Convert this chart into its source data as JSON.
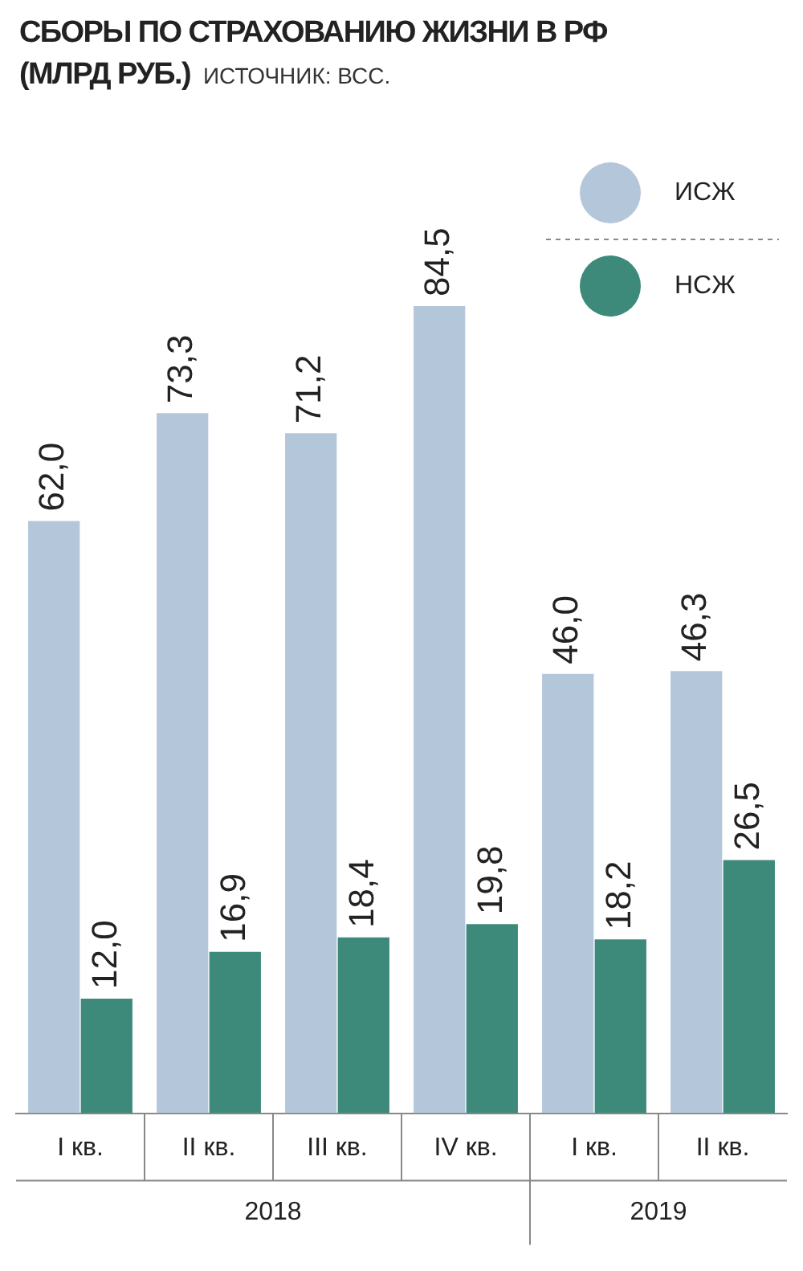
{
  "chart_data": {
    "type": "bar",
    "title": "СБОРЫ ПО СТРАХОВАНИЮ ЖИЗНИ В РФ (МЛРД РУБ.)",
    "categories": [
      "I кв.",
      "II кв.",
      "III кв.",
      "IV кв.",
      "I кв.",
      "II кв."
    ],
    "series": [
      {
        "name": "ИСЖ",
        "color": "#b4c7da",
        "values": [
          62.0,
          73.3,
          71.2,
          84.5,
          46.0,
          46.3
        ],
        "value_labels": [
          "62,0",
          "73,3",
          "71,2",
          "84,5",
          "46,0",
          "46,3"
        ]
      },
      {
        "name": "НСЖ",
        "color": "#3d8a7b",
        "values": [
          12.0,
          16.9,
          18.4,
          19.8,
          18.2,
          26.5
        ],
        "value_labels": [
          "12,0",
          "16,9",
          "18,4",
          "19,8",
          "18,2",
          "26,5"
        ]
      }
    ],
    "legend": "top right",
    "grid": false,
    "annotations": [
      "ИСТОЧНИК: ВСС.",
      "2018",
      "2019"
    ]
  }
}
